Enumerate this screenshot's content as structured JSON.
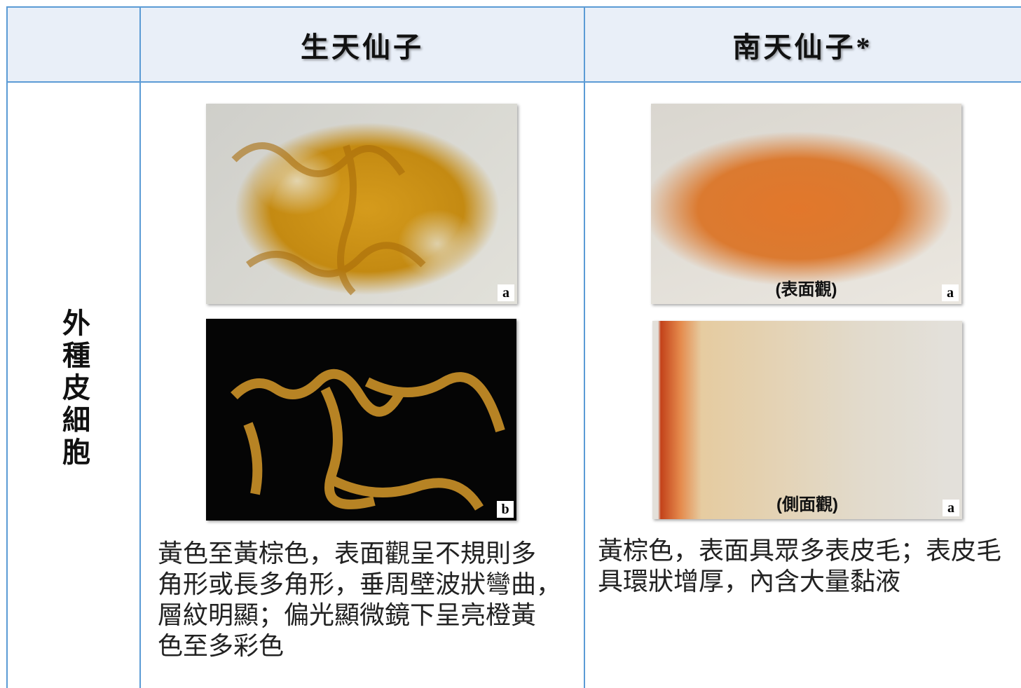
{
  "table": {
    "columns": [
      "生天仙子",
      "南天仙子*"
    ],
    "rows": [
      {
        "label": "外種皮細胞",
        "cells": [
          {
            "figures": [
              {
                "letter": "a"
              },
              {
                "letter": "b"
              }
            ],
            "description": [
              "黃色至黃棕色，表面觀呈不規則多",
              "角形或長多角形，垂周壁波狀彎曲，",
              "層紋明顯；偏光顯微鏡下呈亮橙黃",
              "色至多彩色"
            ]
          },
          {
            "figures": [
              {
                "caption": "(表面觀)",
                "letter": "a"
              },
              {
                "caption": "(側面觀)",
                "letter": "a"
              }
            ],
            "description": [
              "黃棕色，表面具眾多表皮毛；表皮毛",
              "具環狀增厚，內含大量黏液"
            ]
          }
        ]
      }
    ]
  }
}
